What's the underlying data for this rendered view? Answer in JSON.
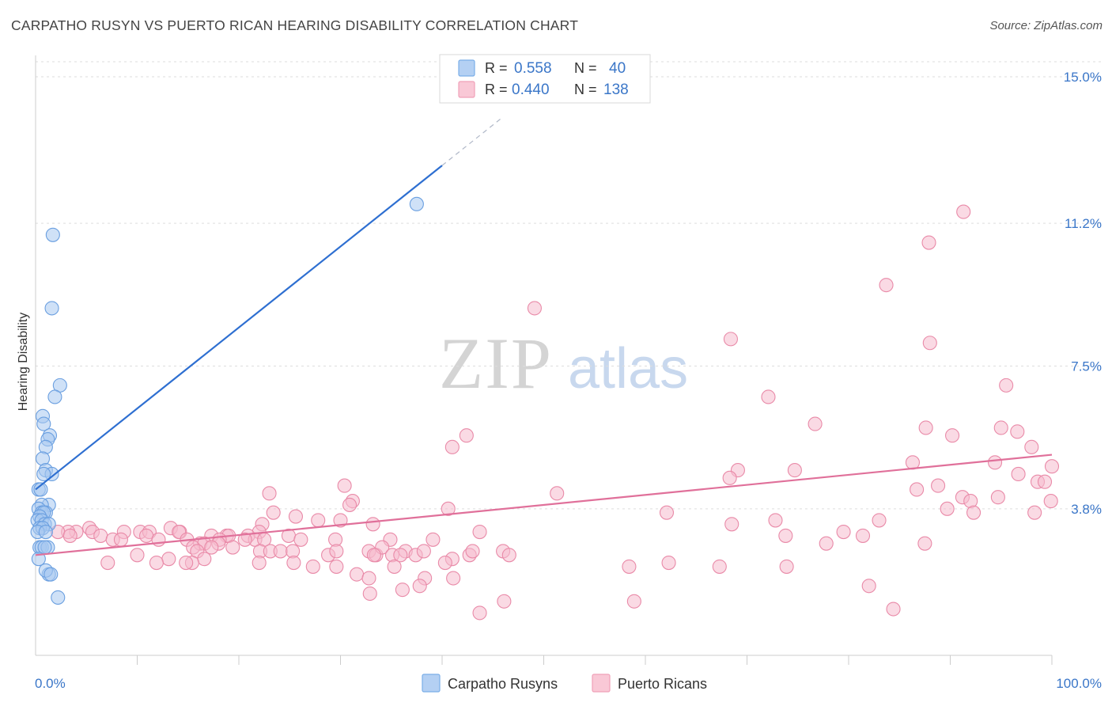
{
  "header": {
    "title": "CARPATHO RUSYN VS PUERTO RICAN HEARING DISABILITY CORRELATION CHART",
    "source": "Source: ZipAtlas.com"
  },
  "watermark": {
    "zip": "ZIP",
    "atlas": "atlas"
  },
  "legend_top": {
    "rows": [
      {
        "r_label": "R =",
        "r_value": "0.558",
        "n_label": "N =",
        "n_value": "40",
        "color": "#7aaee8"
      },
      {
        "r_label": "R =",
        "r_value": "0.440",
        "n_label": "N =",
        "n_value": "138",
        "color": "#f0a0b8"
      }
    ]
  },
  "colors": {
    "blue_fill": "#a8c8f0",
    "blue_stroke": "#6a9fe0",
    "blue_line": "#2e6fd1",
    "pink_fill": "#f6bccd",
    "pink_stroke": "#e98aa8",
    "pink_line": "#e0709a",
    "tick_label": "#3a76c8",
    "grid": "#dddddd"
  },
  "chart_data": {
    "type": "scatter",
    "title": "CARPATHO RUSYN VS PUERTO RICAN HEARING DISABILITY CORRELATION CHART",
    "xlabel": "",
    "ylabel": "Hearing Disability",
    "xlim": [
      0,
      100
    ],
    "ylim": [
      0,
      15.8
    ],
    "x_tick_labels": [
      "0.0%",
      "100.0%"
    ],
    "y_ticks": [
      3.8,
      7.5,
      11.2,
      15.0
    ],
    "y_tick_labels": [
      "3.8%",
      "7.5%",
      "11.2%",
      "15.0%"
    ],
    "grid": true,
    "legend_position": "bottom",
    "series": [
      {
        "name": "Carpatho Rusyns",
        "r": 0.558,
        "n": 40,
        "trend": {
          "x0": 0,
          "y0": 4.3,
          "x1": 40,
          "y1": 12.7,
          "dash_to_x": 46
        },
        "points": [
          [
            1.7,
            10.9
          ],
          [
            1.6,
            9.0
          ],
          [
            2.4,
            7.0
          ],
          [
            1.9,
            6.7
          ],
          [
            0.7,
            6.2
          ],
          [
            0.8,
            6.0
          ],
          [
            1.4,
            5.7
          ],
          [
            1.2,
            5.6
          ],
          [
            1.0,
            5.4
          ],
          [
            0.7,
            5.1
          ],
          [
            1.0,
            4.8
          ],
          [
            1.6,
            4.7
          ],
          [
            0.8,
            4.7
          ],
          [
            0.3,
            4.3
          ],
          [
            0.5,
            4.3
          ],
          [
            1.3,
            3.9
          ],
          [
            0.6,
            3.9
          ],
          [
            0.3,
            3.8
          ],
          [
            0.6,
            3.7
          ],
          [
            1.0,
            3.7
          ],
          [
            0.8,
            3.7
          ],
          [
            0.4,
            3.6
          ],
          [
            0.2,
            3.5
          ],
          [
            0.6,
            3.5
          ],
          [
            0.9,
            3.4
          ],
          [
            1.3,
            3.4
          ],
          [
            0.4,
            3.3
          ],
          [
            0.7,
            3.3
          ],
          [
            0.2,
            3.2
          ],
          [
            1.0,
            3.2
          ],
          [
            0.4,
            2.8
          ],
          [
            0.6,
            2.8
          ],
          [
            1.2,
            2.8
          ],
          [
            0.9,
            2.8
          ],
          [
            0.3,
            2.5
          ],
          [
            1.3,
            2.1
          ],
          [
            1.0,
            2.2
          ],
          [
            1.5,
            2.1
          ],
          [
            2.2,
            1.5
          ],
          [
            37.5,
            11.7
          ]
        ]
      },
      {
        "name": "Puerto Ricans",
        "r": 0.44,
        "n": 138,
        "trend": {
          "x0": 0,
          "y0": 2.6,
          "x1": 100,
          "y1": 5.2
        },
        "points": [
          [
            91.3,
            11.5
          ],
          [
            87.9,
            10.7
          ],
          [
            83.7,
            9.6
          ],
          [
            49.1,
            9.0
          ],
          [
            68.4,
            8.2
          ],
          [
            88.0,
            8.1
          ],
          [
            95.5,
            7.0
          ],
          [
            72.1,
            6.7
          ],
          [
            76.7,
            6.0
          ],
          [
            87.6,
            5.9
          ],
          [
            95.0,
            5.9
          ],
          [
            96.6,
            5.8
          ],
          [
            90.2,
            5.7
          ],
          [
            42.4,
            5.7
          ],
          [
            41.0,
            5.4
          ],
          [
            98.0,
            5.4
          ],
          [
            86.3,
            5.0
          ],
          [
            94.4,
            5.0
          ],
          [
            100.0,
            4.9
          ],
          [
            69.1,
            4.8
          ],
          [
            74.7,
            4.8
          ],
          [
            96.7,
            4.7
          ],
          [
            68.3,
            4.6
          ],
          [
            98.6,
            4.5
          ],
          [
            99.3,
            4.5
          ],
          [
            88.8,
            4.4
          ],
          [
            86.7,
            4.3
          ],
          [
            30.4,
            4.4
          ],
          [
            23.0,
            4.2
          ],
          [
            51.3,
            4.2
          ],
          [
            91.2,
            4.1
          ],
          [
            94.7,
            4.1
          ],
          [
            31.2,
            4.0
          ],
          [
            99.9,
            4.0
          ],
          [
            92.0,
            4.0
          ],
          [
            30.9,
            3.9
          ],
          [
            92.3,
            3.7
          ],
          [
            23.4,
            3.7
          ],
          [
            40.6,
            3.8
          ],
          [
            98.3,
            3.7
          ],
          [
            89.7,
            3.8
          ],
          [
            62.1,
            3.7
          ],
          [
            25.6,
            3.6
          ],
          [
            83.0,
            3.5
          ],
          [
            72.8,
            3.5
          ],
          [
            30.0,
            3.5
          ],
          [
            33.2,
            3.4
          ],
          [
            27.8,
            3.5
          ],
          [
            68.5,
            3.4
          ],
          [
            22.3,
            3.4
          ],
          [
            5.3,
            3.3
          ],
          [
            5.6,
            3.2
          ],
          [
            8.7,
            3.2
          ],
          [
            10.3,
            3.2
          ],
          [
            11.2,
            3.2
          ],
          [
            17.3,
            3.1
          ],
          [
            13.3,
            3.3
          ],
          [
            14.2,
            3.2
          ],
          [
            18.8,
            3.1
          ],
          [
            14.1,
            3.2
          ],
          [
            22.0,
            3.2
          ],
          [
            20.9,
            3.1
          ],
          [
            19.0,
            3.1
          ],
          [
            21.6,
            3.0
          ],
          [
            18.1,
            3.0
          ],
          [
            22.5,
            3.0
          ],
          [
            79.5,
            3.2
          ],
          [
            73.8,
            3.1
          ],
          [
            81.4,
            3.1
          ],
          [
            43.7,
            3.2
          ],
          [
            4.0,
            3.2
          ],
          [
            3.2,
            3.2
          ],
          [
            2.2,
            3.2
          ],
          [
            3.4,
            3.1
          ],
          [
            6.4,
            3.1
          ],
          [
            7.6,
            3.0
          ],
          [
            8.4,
            3.0
          ],
          [
            10.9,
            3.1
          ],
          [
            12.1,
            3.0
          ],
          [
            14.9,
            3.0
          ],
          [
            16.2,
            2.9
          ],
          [
            16.6,
            2.9
          ],
          [
            18.0,
            2.9
          ],
          [
            20.6,
            3.0
          ],
          [
            24.9,
            3.1
          ],
          [
            26.1,
            3.0
          ],
          [
            29.5,
            3.0
          ],
          [
            34.9,
            3.0
          ],
          [
            39.1,
            3.0
          ],
          [
            77.8,
            2.9
          ],
          [
            87.5,
            2.9
          ],
          [
            15.5,
            2.8
          ],
          [
            15.9,
            2.7
          ],
          [
            17.3,
            2.8
          ],
          [
            19.4,
            2.8
          ],
          [
            22.1,
            2.7
          ],
          [
            23.1,
            2.7
          ],
          [
            24.1,
            2.7
          ],
          [
            25.3,
            2.7
          ],
          [
            28.8,
            2.6
          ],
          [
            29.6,
            2.7
          ],
          [
            32.8,
            2.7
          ],
          [
            33.5,
            2.6
          ],
          [
            34.1,
            2.8
          ],
          [
            35.1,
            2.6
          ],
          [
            36.4,
            2.7
          ],
          [
            37.4,
            2.6
          ],
          [
            38.2,
            2.7
          ],
          [
            42.7,
            2.6
          ],
          [
            43.0,
            2.7
          ],
          [
            46.0,
            2.7
          ],
          [
            10.0,
            2.6
          ],
          [
            13.1,
            2.5
          ],
          [
            16.6,
            2.5
          ],
          [
            33.3,
            2.6
          ],
          [
            35.9,
            2.6
          ],
          [
            46.6,
            2.6
          ],
          [
            41.0,
            2.5
          ],
          [
            7.1,
            2.4
          ],
          [
            15.4,
            2.4
          ],
          [
            22.0,
            2.4
          ],
          [
            25.4,
            2.4
          ],
          [
            27.3,
            2.3
          ],
          [
            29.6,
            2.3
          ],
          [
            31.6,
            2.1
          ],
          [
            35.3,
            2.3
          ],
          [
            40.3,
            2.4
          ],
          [
            62.3,
            2.4
          ],
          [
            73.9,
            2.3
          ],
          [
            11.9,
            2.4
          ],
          [
            14.8,
            2.4
          ],
          [
            32.8,
            2.0
          ],
          [
            38.3,
            2.0
          ],
          [
            41.1,
            2.0
          ],
          [
            58.4,
            2.3
          ],
          [
            67.3,
            2.3
          ],
          [
            82.0,
            1.8
          ],
          [
            32.9,
            1.6
          ],
          [
            36.1,
            1.7
          ],
          [
            37.8,
            1.8
          ],
          [
            46.1,
            1.4
          ],
          [
            58.9,
            1.4
          ],
          [
            84.4,
            1.2
          ],
          [
            43.7,
            1.1
          ]
        ]
      }
    ]
  },
  "legend_bottom": {
    "items": [
      "Carpatho Rusyns",
      "Puerto Ricans"
    ]
  }
}
